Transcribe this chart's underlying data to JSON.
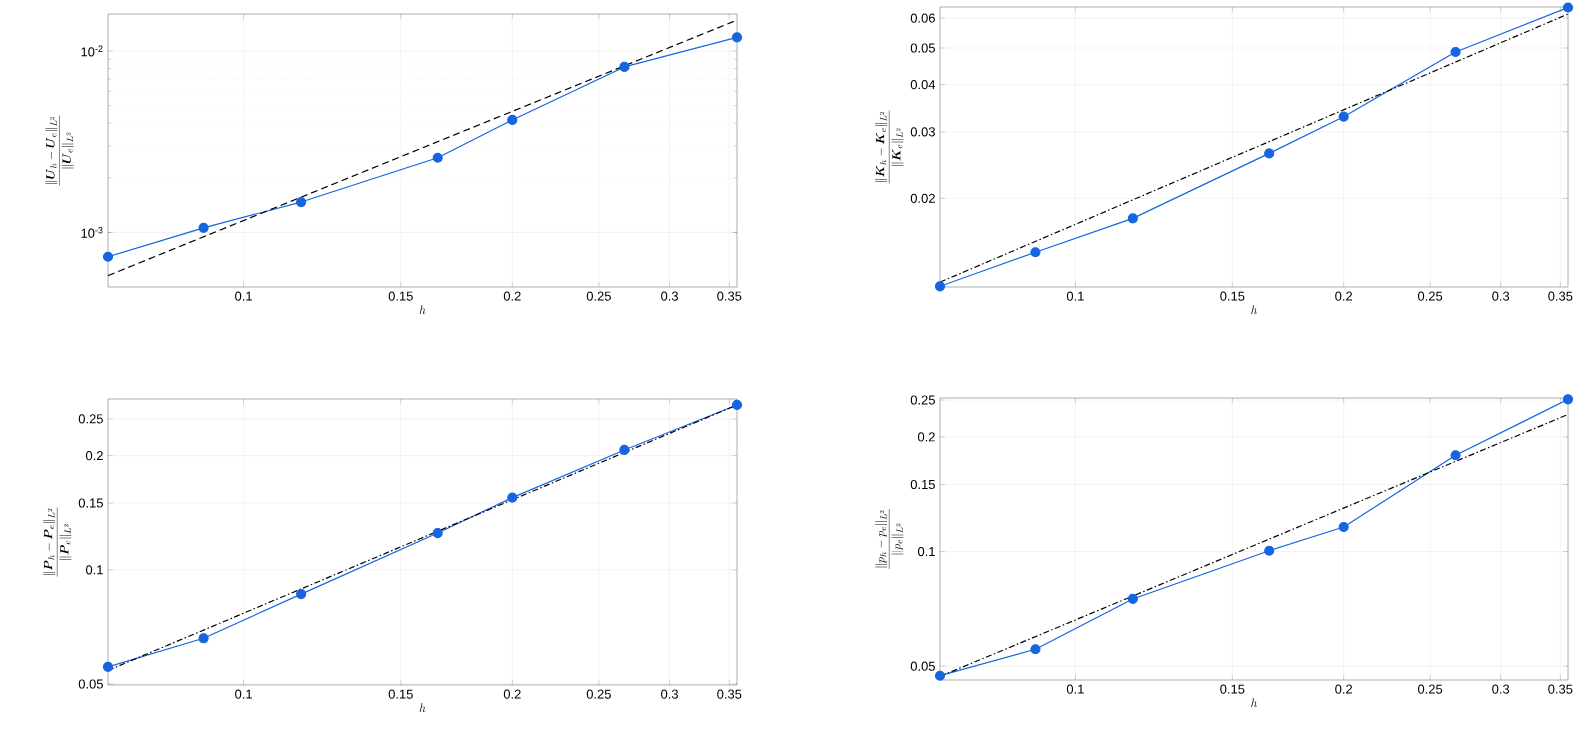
{
  "chart_data": [
    {
      "type": "line",
      "xlabel": "h",
      "ylabel": "\\frac{\\|\\boldsymbol{U}_h-\\boldsymbol{U}_e\\|_{L^2}}{\\|\\boldsymbol{U}_e\\|_{L^2}}",
      "log": "xy",
      "grid": true,
      "xlim": [
        0.0705,
        0.357
      ],
      "ylim": [
        0.0005,
        0.016
      ],
      "xticks": [
        0.1,
        0.15,
        0.2,
        0.25,
        0.3,
        0.35
      ],
      "yticks": [
        {
          "value": 0.001,
          "label": "10$^{-3}$"
        },
        {
          "value": 0.01,
          "label": "10$^{-2}$"
        }
      ],
      "series": [
        {
          "color": "#1565e0",
          "marker": "circle",
          "line_style": "solid",
          "x": [
            0.0705,
            0.0902,
            0.116,
            0.165,
            0.2,
            0.267,
            0.357
          ],
          "values": [
            0.000734,
            0.00106,
            0.00147,
            0.00258,
            0.00417,
            0.00817,
            0.0119
          ]
        },
        {
          "color": "#000000",
          "marker": "none",
          "line_style": "dashed",
          "x": [
            0.0705,
            0.357
          ],
          "values": [
            0.000578,
            0.0148
          ]
        }
      ]
    },
    {
      "type": "line",
      "xlabel": "h",
      "ylabel": "\\frac{\\|\\boldsymbol{K}_h-\\boldsymbol{K}_e\\|_{L^2}}{\\|\\boldsymbol{K}_e\\|_{L^2}}",
      "log": "xy",
      "grid": true,
      "xlim": [
        0.0705,
        0.357
      ],
      "ylim": [
        0.01165,
        0.0642
      ],
      "xticks": [
        0.1,
        0.15,
        0.2,
        0.25,
        0.3,
        0.35
      ],
      "yticks": [
        0.02,
        0.03,
        0.04,
        0.05,
        0.06
      ],
      "series": [
        {
          "color": "#1565e0",
          "marker": "circle",
          "line_style": "solid",
          "x": [
            0.0705,
            0.0902,
            0.116,
            0.165,
            0.2,
            0.267,
            0.357
          ],
          "values": [
            0.0117,
            0.0144,
            0.0177,
            0.0263,
            0.0329,
            0.0488,
            0.064
          ]
        },
        {
          "color": "#000000",
          "marker": "none",
          "line_style": "dashdot",
          "x": [
            0.0705,
            0.357
          ],
          "values": [
            0.012,
            0.0615
          ]
        }
      ]
    },
    {
      "type": "line",
      "xlabel": "h",
      "ylabel": "\\frac{\\|\\boldsymbol{P}_h-\\boldsymbol{P}_e\\|_{L^2}}{\\|\\boldsymbol{P}_e\\|_{L^2}}",
      "log": "xy",
      "grid": true,
      "xlim": [
        0.0705,
        0.357
      ],
      "ylim": [
        0.0497,
        0.282
      ],
      "xticks": [
        0.1,
        0.15,
        0.2,
        0.25,
        0.3,
        0.35
      ],
      "yticks": [
        0.05,
        0.1,
        0.15,
        0.2,
        0.25
      ],
      "series": [
        {
          "color": "#1565e0",
          "marker": "circle",
          "line_style": "solid",
          "x": [
            0.0705,
            0.0902,
            0.116,
            0.165,
            0.2,
            0.267,
            0.357
          ],
          "values": [
            0.0555,
            0.066,
            0.0863,
            0.125,
            0.155,
            0.207,
            0.272
          ]
        },
        {
          "color": "#000000",
          "marker": "none",
          "line_style": "dashdot",
          "x": [
            0.0705,
            0.357
          ],
          "values": [
            0.0543,
            0.272
          ]
        }
      ]
    },
    {
      "type": "line",
      "xlabel": "h",
      "ylabel": "\\frac{\\|p_h-p_e\\|_{L^2}}{\\|p_e\\|_{L^2}}",
      "log": "xy",
      "grid": true,
      "xlim": [
        0.0705,
        0.357
      ],
      "ylim": [
        0.046,
        0.253
      ],
      "xticks": [
        0.1,
        0.15,
        0.2,
        0.25,
        0.3,
        0.35
      ],
      "yticks": [
        0.05,
        0.1,
        0.15,
        0.2,
        0.25
      ],
      "series": [
        {
          "color": "#1565e0",
          "marker": "circle",
          "line_style": "solid",
          "x": [
            0.0705,
            0.0902,
            0.116,
            0.165,
            0.2,
            0.267,
            0.357
          ],
          "values": [
            0.0472,
            0.0554,
            0.0751,
            0.1005,
            0.116,
            0.179,
            0.251
          ]
        },
        {
          "color": "#000000",
          "marker": "none",
          "line_style": "dashdot",
          "x": [
            0.0705,
            0.357
          ],
          "values": [
            0.047,
            0.229
          ]
        }
      ]
    }
  ]
}
